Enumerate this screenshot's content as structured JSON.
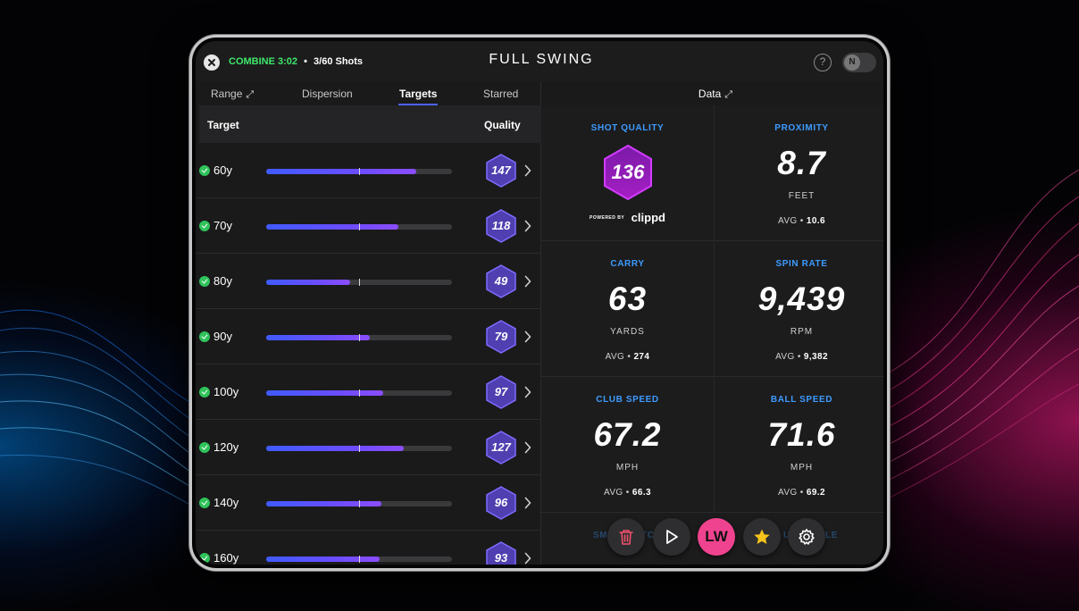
{
  "header": {
    "mode": "COMBINE",
    "timer": "3:02",
    "separator": "•",
    "shots": "3/60 Shots",
    "brand": "FULL SWING",
    "help_label": "?",
    "toggle_label": "N"
  },
  "tabs": [
    {
      "label": "Range",
      "active": false,
      "expandable": true
    },
    {
      "label": "Dispersion",
      "active": false
    },
    {
      "label": "Targets",
      "active": true
    },
    {
      "label": "Starred",
      "active": false
    }
  ],
  "data_tab": {
    "label": "Data",
    "expandable": true
  },
  "targets_table": {
    "headers": {
      "target": "Target",
      "quality": "Quality"
    },
    "rows": [
      {
        "target": "60y",
        "done": true,
        "progress": 0.81,
        "avg_marker": 0.5,
        "quality": "147"
      },
      {
        "target": "70y",
        "done": true,
        "progress": 0.71,
        "avg_marker": 0.5,
        "quality": "118"
      },
      {
        "target": "80y",
        "done": true,
        "progress": 0.45,
        "avg_marker": 0.5,
        "quality": "49"
      },
      {
        "target": "90y",
        "done": true,
        "progress": 0.56,
        "avg_marker": 0.5,
        "quality": "79"
      },
      {
        "target": "100y",
        "done": true,
        "progress": 0.63,
        "avg_marker": 0.5,
        "quality": "97"
      },
      {
        "target": "120y",
        "done": true,
        "progress": 0.74,
        "avg_marker": 0.5,
        "quality": "127"
      },
      {
        "target": "140y",
        "done": true,
        "progress": 0.62,
        "avg_marker": 0.5,
        "quality": "96"
      },
      {
        "target": "160y",
        "done": true,
        "progress": 0.61,
        "avg_marker": 0.5,
        "quality": "93"
      }
    ]
  },
  "shot_data": {
    "shot_quality": {
      "label": "SHOT QUALITY",
      "value": "136",
      "powered_by": "POWERED BY",
      "partner": "clippd"
    },
    "proximity": {
      "label": "PROXIMITY",
      "value": "8.7",
      "unit": "FEET",
      "avg_label": "AVG •",
      "avg": "10.6"
    },
    "carry": {
      "label": "CARRY",
      "value": "63",
      "unit": "YARDS",
      "avg_label": "AVG •",
      "avg": "274"
    },
    "spin_rate": {
      "label": "SPIN RATE",
      "value": "9,439",
      "unit": "RPM",
      "avg_label": "AVG •",
      "avg": "9,382"
    },
    "club_speed": {
      "label": "CLUB SPEED",
      "value": "67.2",
      "unit": "MPH",
      "avg_label": "AVG •",
      "avg": "66.3"
    },
    "ball_speed": {
      "label": "BALL SPEED",
      "value": "71.6",
      "unit": "MPH",
      "avg_label": "AVG •",
      "avg": "69.2"
    },
    "partial_left": "SM",
    "partial_left_tail": "TC",
    "partial_right": "U",
    "partial_right_tail": "LE"
  },
  "actions": {
    "club": "LW",
    "icons": [
      "trash-icon",
      "play-icon",
      "star-icon",
      "gear-icon"
    ]
  },
  "colors": {
    "accent_blue": "#3d9bff",
    "progress": "#4a63ff",
    "hex_fill": "#4f3fb0",
    "shot_hex": "#8a1fb3",
    "club_pink": "#f0438f",
    "check_green": "#2fc35a",
    "timer_green": "#3ee86a"
  }
}
